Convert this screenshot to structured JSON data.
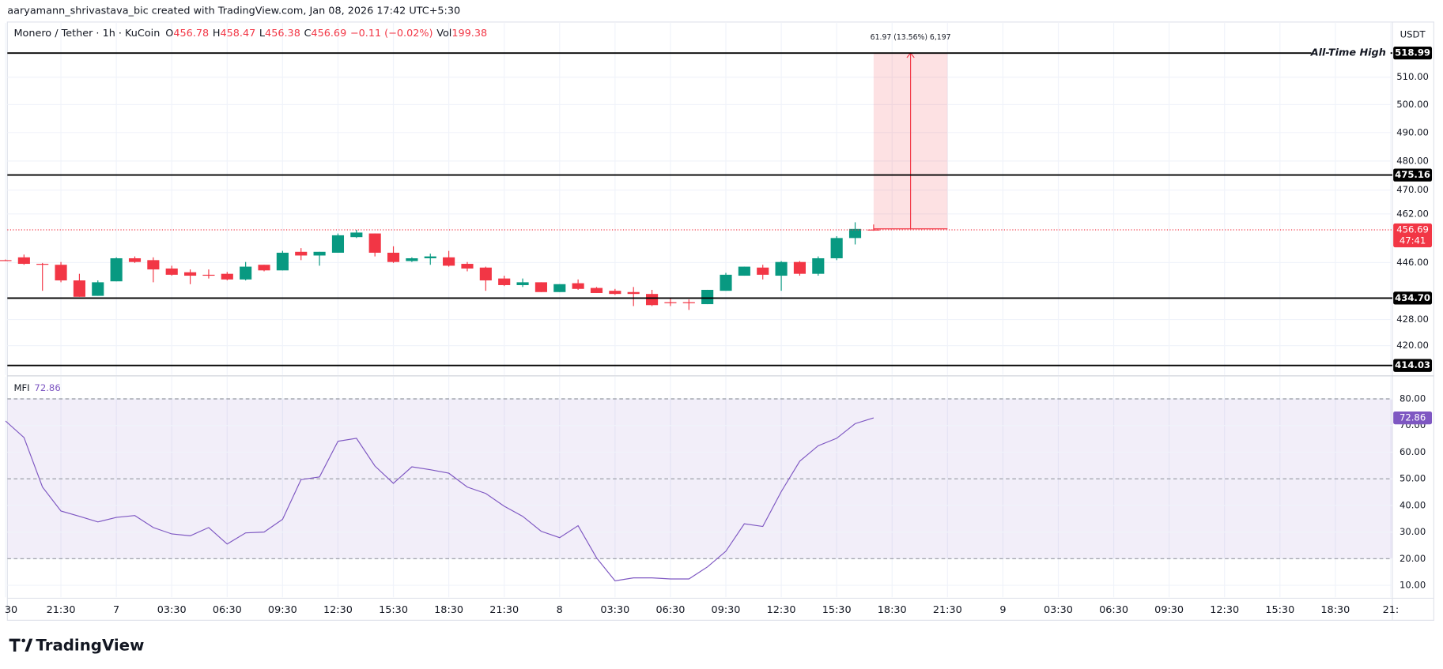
{
  "header": "aaryamann_shrivastava_bic created with TradingView.com, Jan 08, 2026 17:42 UTC+5:30",
  "footer": {
    "brand": "TradingView"
  },
  "chart_data": [
    {
      "type": "candlestick",
      "legend": {
        "symbol": "Monero / Tether · 1h · KuCoin",
        "keys": [
          "O",
          "H",
          "L",
          "C"
        ],
        "change": "−0.11 (−0.02%)",
        "volume_key": "Vol",
        "volume": 199.38
      },
      "currency": "USDT",
      "up_color": "#089981",
      "down_color": "#f23645",
      "log": true,
      "grid": true,
      "ylim": [
        411.2,
        530.4
      ],
      "yticks": [
        {
          "value": 510,
          "label": "510.00"
        },
        {
          "value": 500,
          "label": "500.00"
        },
        {
          "value": 490,
          "label": "490.00"
        },
        {
          "value": 480,
          "label": "480.00"
        },
        {
          "value": 470,
          "label": "470.00"
        },
        {
          "value": 462,
          "label": "462.00"
        },
        {
          "value": 446,
          "label": "446.00"
        },
        {
          "value": 428,
          "label": "428.00"
        },
        {
          "value": 420,
          "label": "420.00"
        }
      ],
      "levels": [
        {
          "value": 518.99,
          "note": "All-Time High"
        },
        475.16,
        {
          "value": 434.7,
          "label": "434.70"
        },
        414.03
      ],
      "countdown": "47:41",
      "measure": {
        "label": "61.97 (13.56%) 6,197",
        "change": 61.97
      },
      "categories": [
        "30",
        null,
        null,
        "21:30",
        null,
        null,
        "7",
        null,
        null,
        "03:30",
        null,
        null,
        "06:30",
        null,
        null,
        "09:30",
        null,
        null,
        "12:30",
        null,
        null,
        "15:30",
        null,
        null,
        "18:30",
        null,
        null,
        "21:30",
        null,
        null,
        "8",
        null,
        null,
        "03:30",
        null,
        null,
        "06:30",
        null,
        null,
        "09:30",
        null,
        null,
        "12:30",
        null,
        null,
        "15:30",
        null,
        null,
        "18:30",
        null,
        null,
        "21:30",
        null,
        null,
        "9",
        null,
        null,
        "03:30",
        null,
        null,
        "06:30",
        null,
        null,
        "09:30",
        null,
        null,
        "12:30",
        null,
        null,
        "15:30",
        null,
        null,
        "18:30",
        null,
        null,
        "21:"
      ],
      "open": [
        446.8,
        447.7,
        445.6,
        445.3,
        440.3,
        435.4,
        440.0,
        447.4,
        446.8,
        444.1,
        442.9,
        442.1,
        442.4,
        440.6,
        445.3,
        443.5,
        449.5,
        448.3,
        449.2,
        454.3,
        455.5,
        449.2,
        446.5,
        447.4,
        447.7,
        445.6,
        444.4,
        440.9,
        438.8,
        439.7,
        436.6,
        439.4,
        437.9,
        437.0,
        436.6,
        436.0,
        433.4,
        433.4,
        432.8,
        437.0,
        441.8,
        444.4,
        441.8,
        446.2,
        442.4,
        447.4,
        454.0,
        456.78,
        null,
        null,
        null,
        null,
        null,
        null,
        null,
        null,
        null,
        null,
        null,
        null,
        null,
        null,
        null,
        null,
        null,
        null,
        null,
        null,
        null,
        null,
        null,
        null,
        null,
        null,
        null,
        null
      ],
      "high": [
        447.0,
        448.6,
        445.9,
        446.2,
        442.4,
        440.3,
        447.7,
        448.0,
        447.7,
        445.0,
        443.8,
        443.8,
        443.0,
        446.2,
        445.3,
        449.8,
        450.7,
        449.5,
        455.5,
        456.7,
        455.5,
        451.3,
        447.7,
        448.9,
        449.8,
        446.2,
        444.7,
        441.8,
        440.9,
        439.7,
        439.1,
        440.6,
        438.2,
        437.6,
        438.2,
        437.3,
        434.9,
        434.3,
        437.3,
        442.7,
        444.7,
        445.3,
        446.5,
        446.5,
        448.0,
        454.6,
        459.2,
        458.47,
        null,
        null,
        null,
        null,
        null,
        null,
        null,
        null,
        null,
        null,
        null,
        null,
        null,
        null,
        null,
        null,
        null,
        null,
        null,
        null,
        null,
        null,
        null,
        null,
        null,
        null,
        null,
        null
      ],
      "low": [
        446.5,
        445.3,
        437.0,
        439.7,
        435.1,
        435.4,
        440.0,
        445.9,
        439.7,
        441.8,
        439.1,
        440.9,
        440.3,
        440.3,
        443.2,
        443.5,
        446.8,
        445.0,
        449.2,
        454.0,
        448.0,
        445.9,
        446.2,
        445.3,
        444.7,
        443.2,
        437.0,
        438.5,
        438.2,
        436.6,
        436.6,
        437.3,
        436.3,
        435.7,
        432.2,
        432.2,
        432.2,
        431.0,
        432.8,
        437.0,
        441.8,
        440.6,
        437.0,
        441.8,
        441.8,
        446.8,
        451.9,
        456.38,
        null,
        null,
        null,
        null,
        null,
        null,
        null,
        null,
        null,
        null,
        null,
        null,
        null,
        null,
        null,
        null,
        null,
        null,
        null,
        null,
        null,
        null,
        null,
        null,
        null,
        null,
        null,
        null
      ],
      "close": [
        446.6,
        445.6,
        445.3,
        440.3,
        435.1,
        439.7,
        447.4,
        446.2,
        443.8,
        442.1,
        441.8,
        441.8,
        440.6,
        444.7,
        443.5,
        449.2,
        448.3,
        449.5,
        454.9,
        455.8,
        449.2,
        446.2,
        447.4,
        448.0,
        445.0,
        444.1,
        440.3,
        438.8,
        439.7,
        436.6,
        439.1,
        437.6,
        436.3,
        436.0,
        436.0,
        432.5,
        433.1,
        433.1,
        437.3,
        442.1,
        444.7,
        442.1,
        446.2,
        442.4,
        447.4,
        454.0,
        457.0,
        456.69,
        null,
        null,
        null,
        null,
        null,
        null,
        null,
        null,
        null,
        null,
        null,
        null,
        null,
        null,
        null,
        null,
        null,
        null,
        null,
        null,
        null,
        null,
        null,
        null,
        null,
        null,
        null,
        null
      ]
    },
    {
      "type": "line",
      "name": "MFI",
      "color": "#7e57c2",
      "grid": true,
      "ylim": [
        5.5,
        88.3
      ],
      "yticks": [
        {
          "value": 80,
          "label": "80.00"
        },
        {
          "value": 70,
          "label": "70.00"
        },
        {
          "value": 60,
          "label": "60.00"
        },
        {
          "value": 50,
          "label": "50.00"
        },
        {
          "value": 40,
          "label": "40.00"
        },
        {
          "value": 30,
          "label": "30.00"
        },
        {
          "value": 20,
          "label": "20.00"
        },
        {
          "value": 10,
          "label": "10.00"
        }
      ],
      "levels": [
        80,
        50,
        20
      ],
      "values": [
        71.7,
        65.5,
        46.9,
        37.9,
        35.9,
        33.8,
        35.5,
        36.2,
        31.7,
        29.3,
        28.6,
        31.7,
        25.5,
        29.7,
        30.0,
        34.8,
        49.7,
        50.7,
        64.1,
        65.2,
        54.8,
        48.3,
        54.5,
        53.4,
        52.1,
        46.9,
        44.5,
        39.7,
        35.9,
        30.3,
        27.9,
        32.4,
        20.3,
        11.7,
        12.8,
        12.8,
        12.4,
        12.4,
        16.9,
        22.8,
        33.1,
        32.1,
        45.2,
        56.6,
        62.4,
        65.2,
        70.7,
        72.86,
        null,
        null,
        null,
        null,
        null,
        null,
        null,
        null,
        null,
        null,
        null,
        null,
        null,
        null,
        null,
        null,
        null,
        null,
        null,
        null,
        null,
        null,
        null,
        null,
        null,
        null,
        null,
        null
      ]
    }
  ]
}
